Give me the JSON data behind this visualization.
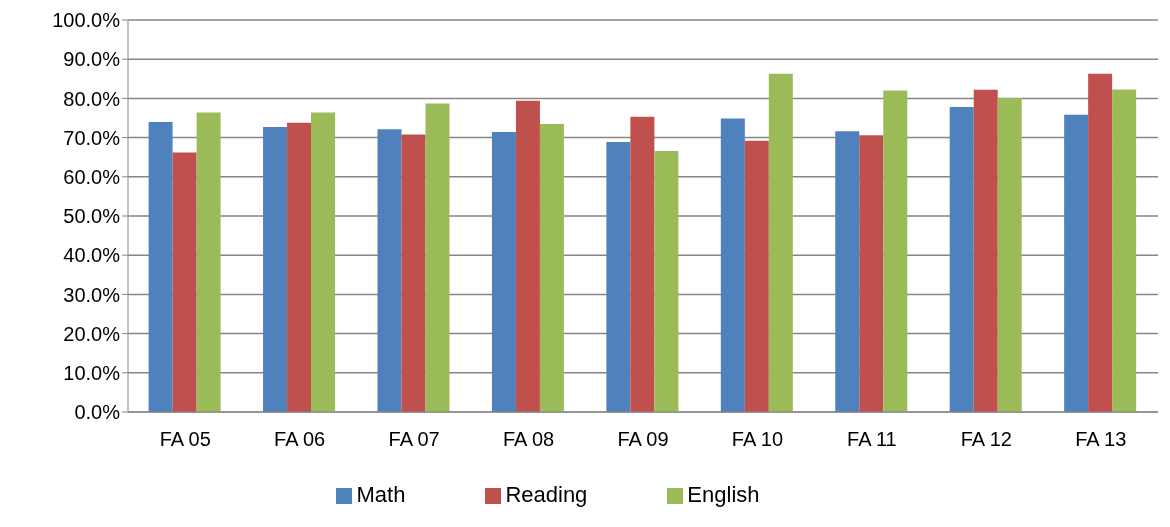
{
  "chart_data": {
    "type": "bar",
    "categories": [
      "FA 05",
      "FA 06",
      "FA 07",
      "FA 08",
      "FA 09",
      "FA 10",
      "FA 11",
      "FA 12",
      "FA 13"
    ],
    "series": [
      {
        "name": "Math",
        "color": "#4f81bd",
        "values": [
          74.0,
          72.7,
          72.1,
          71.4,
          68.9,
          74.9,
          71.6,
          77.8,
          75.8
        ]
      },
      {
        "name": "Reading",
        "color": "#c0504d",
        "values": [
          66.2,
          73.8,
          70.8,
          79.4,
          75.3,
          69.2,
          70.6,
          82.2,
          86.3
        ]
      },
      {
        "name": "English",
        "color": "#9bbb59",
        "values": [
          76.4,
          76.4,
          78.7,
          73.5,
          66.6,
          86.3,
          82.0,
          80.1,
          82.3
        ]
      }
    ],
    "ylim": [
      0,
      100
    ],
    "yticks": [
      {
        "value": 0,
        "label": "0.0%"
      },
      {
        "value": 10,
        "label": "10.0%"
      },
      {
        "value": 20,
        "label": "20.0%"
      },
      {
        "value": 30,
        "label": "30.0%"
      },
      {
        "value": 40,
        "label": "40.0%"
      },
      {
        "value": 50,
        "label": "50.0%"
      },
      {
        "value": 60,
        "label": "60.0%"
      },
      {
        "value": 70,
        "label": "70.0%"
      },
      {
        "value": 80,
        "label": "80.0%"
      },
      {
        "value": 90,
        "label": "90.0%"
      },
      {
        "value": 100,
        "label": "100.0%"
      }
    ],
    "grid": "y",
    "legend": "bottom"
  }
}
